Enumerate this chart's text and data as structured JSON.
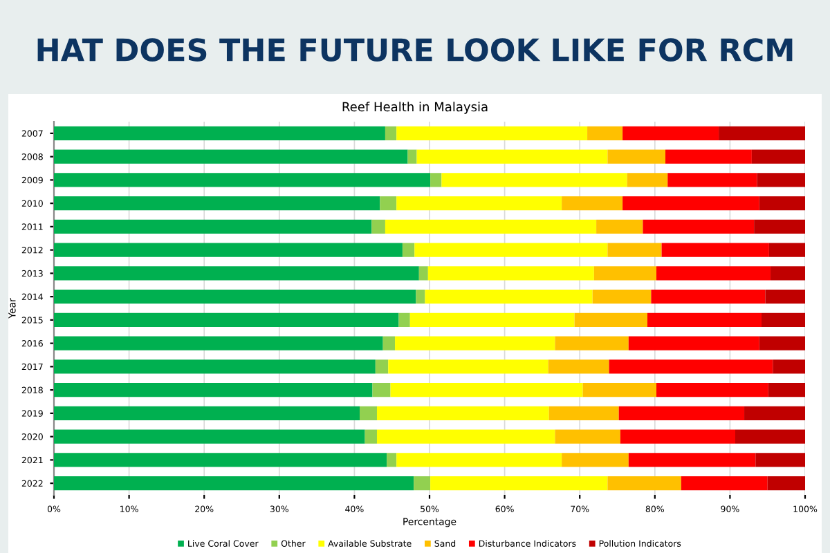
{
  "chart_data": {
    "type": "bar",
    "orientation": "horizontal",
    "stacked": true,
    "title": "Reef Health in Malaysia",
    "annotations": [
      "HAT DOES THE FUTURE LOOK LIKE FOR RCM"
    ],
    "xlabel": "Percentage",
    "ylabel": "Year",
    "categories": [
      "2007",
      "2008",
      "2009",
      "2010",
      "2011",
      "2012",
      "2013",
      "2014",
      "2015",
      "2016",
      "2017",
      "2018",
      "2019",
      "2020",
      "2021",
      "2022"
    ],
    "series": [
      {
        "name": "Live Coral Cover",
        "color": "#00b050",
        "values": [
          44.1,
          47.1,
          50.1,
          43.4,
          42.3,
          46.4,
          48.6,
          48.2,
          45.9,
          43.8,
          42.8,
          42.4,
          40.7,
          41.4,
          44.3,
          47.9
        ]
      },
      {
        "name": "Other",
        "color": "#92d050",
        "values": [
          1.5,
          1.2,
          1.5,
          2.2,
          1.8,
          1.6,
          1.2,
          1.2,
          1.5,
          1.6,
          1.7,
          2.4,
          2.3,
          1.6,
          1.3,
          2.2
        ]
      },
      {
        "name": "Available Substrate",
        "color": "#ffff00",
        "values": [
          25.4,
          25.4,
          24.7,
          22.0,
          28.1,
          25.7,
          22.1,
          22.3,
          21.9,
          21.3,
          21.3,
          25.6,
          22.9,
          23.7,
          22.0,
          23.6
        ]
      },
      {
        "name": "Sand",
        "color": "#ffc000",
        "values": [
          4.7,
          7.7,
          5.4,
          8.1,
          6.2,
          7.2,
          8.3,
          7.8,
          9.7,
          9.8,
          8.1,
          9.8,
          9.3,
          8.7,
          8.9,
          9.8
        ]
      },
      {
        "name": "Disturbance Indicators",
        "color": "#ff0000",
        "values": [
          12.8,
          11.5,
          11.9,
          18.2,
          14.8,
          14.3,
          15.2,
          15.2,
          15.2,
          17.4,
          21.8,
          14.9,
          16.7,
          15.3,
          16.9,
          11.5
        ]
      },
      {
        "name": "Pollution Indicators",
        "color": "#c00000",
        "values": [
          11.5,
          7.1,
          6.4,
          6.1,
          6.8,
          4.8,
          4.6,
          5.3,
          5.8,
          6.1,
          4.3,
          4.9,
          8.1,
          9.3,
          6.6,
          5.0
        ]
      }
    ],
    "xlim": [
      0,
      100
    ],
    "xticks": [
      {
        "value": 0,
        "label": "0%"
      },
      {
        "value": 10,
        "label": "10%"
      },
      {
        "value": 20,
        "label": "20%"
      },
      {
        "value": 30,
        "label": "30%"
      },
      {
        "value": 40,
        "label": "40%"
      },
      {
        "value": 50,
        "label": "50%"
      },
      {
        "value": 60,
        "label": "60%"
      },
      {
        "value": 70,
        "label": "70%"
      },
      {
        "value": 80,
        "label": "80%"
      },
      {
        "value": 90,
        "label": "90%"
      },
      {
        "value": 100,
        "label": "100%"
      }
    ],
    "grid": "x",
    "legend": "bottom"
  }
}
